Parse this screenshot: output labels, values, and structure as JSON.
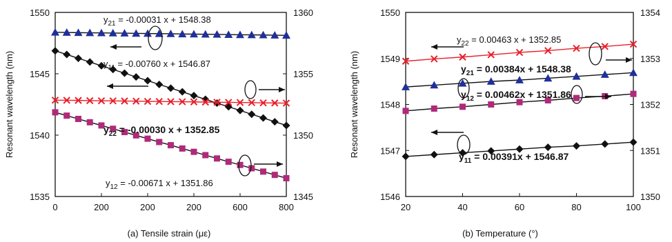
{
  "chart_data": [
    {
      "type": "line",
      "caption": "(a) Tensile strain (με)",
      "ylabel_left": "Resonant wavelength (nm)",
      "xlim": [
        0,
        800
      ],
      "ylim_left": [
        1535,
        1550
      ],
      "ylim_right": [
        1345,
        1360
      ],
      "x_tick_labels": [
        "0",
        "200",
        "200",
        "200",
        "600",
        "800"
      ],
      "y_left_tick_labels": [
        "1535",
        "1540",
        "1545",
        "1550"
      ],
      "y_right_tick_labels": [
        "1345",
        "1350",
        "1355",
        "1360"
      ],
      "grid": false,
      "series": [
        {
          "marker": "triangle",
          "color": "#1f2f9c",
          "axis": "left",
          "x": [
            0,
            40,
            80,
            120,
            160,
            200,
            240,
            280,
            320,
            360,
            400,
            440,
            480,
            520,
            560,
            600,
            640,
            680,
            720,
            760,
            800
          ],
          "y": [
            1548.38,
            1548.37,
            1548.35,
            1548.34,
            1548.33,
            1548.32,
            1548.31,
            1548.29,
            1548.28,
            1548.27,
            1548.26,
            1548.24,
            1548.23,
            1548.22,
            1548.21,
            1548.19,
            1548.18,
            1548.17,
            1548.16,
            1548.14,
            1548.13
          ]
        },
        {
          "marker": "diamond",
          "color": "#111111",
          "axis": "left",
          "x": [
            0,
            40,
            80,
            120,
            160,
            200,
            240,
            280,
            320,
            360,
            400,
            440,
            480,
            520,
            560,
            600,
            640,
            680,
            720,
            760,
            800
          ],
          "y": [
            1546.87,
            1546.57,
            1546.26,
            1545.96,
            1545.65,
            1545.35,
            1545.05,
            1544.74,
            1544.44,
            1544.13,
            1543.83,
            1543.53,
            1543.22,
            1542.92,
            1542.61,
            1542.31,
            1542.01,
            1541.7,
            1541.4,
            1541.09,
            1540.79
          ]
        },
        {
          "marker": "x",
          "color": "#e8202a",
          "axis": "right",
          "x": [
            0,
            40,
            80,
            120,
            160,
            200,
            240,
            280,
            320,
            360,
            400,
            440,
            480,
            520,
            560,
            600,
            640,
            680,
            720,
            760,
            800
          ],
          "y": [
            1352.85,
            1352.84,
            1352.83,
            1352.81,
            1352.8,
            1352.79,
            1352.78,
            1352.77,
            1352.75,
            1352.74,
            1352.73,
            1352.72,
            1352.71,
            1352.69,
            1352.68,
            1352.67,
            1352.66,
            1352.65,
            1352.63,
            1352.62,
            1352.61
          ]
        },
        {
          "marker": "square",
          "color": "#b02a7a",
          "axis": "right",
          "x": [
            0,
            40,
            80,
            120,
            160,
            200,
            240,
            280,
            320,
            360,
            400,
            440,
            480,
            520,
            560,
            600,
            640,
            680,
            720,
            760,
            800
          ],
          "y": [
            1351.86,
            1351.59,
            1351.32,
            1351.05,
            1350.79,
            1350.52,
            1350.25,
            1349.98,
            1349.71,
            1349.44,
            1349.18,
            1348.91,
            1348.64,
            1348.37,
            1348.1,
            1347.83,
            1347.57,
            1347.3,
            1347.03,
            1346.76,
            1346.49
          ]
        }
      ],
      "annotations": [
        {
          "pre": "y",
          "sub": "21",
          "post": " = -0.00031 x + 1548.38"
        },
        {
          "pre": "y",
          "sub": "11",
          "post": " = -0.00760 x + 1546.87"
        },
        {
          "pre": "y",
          "sub": "22",
          "post": " = -0.00030 x + 1352.85"
        },
        {
          "pre": "y",
          "sub": "12",
          "post": " = -0.00671 x + 1351.86"
        }
      ]
    },
    {
      "type": "line",
      "caption": "(b) Temperature (°)",
      "ylabel_left": "Resonant wavelength (nm)",
      "xlim": [
        20,
        100
      ],
      "ylim_left": [
        1546,
        1550
      ],
      "ylim_right": [
        1350,
        1354
      ],
      "x_tick_labels": [
        "20",
        "40",
        "60",
        "80",
        "100"
      ],
      "y_left_tick_labels": [
        "1546",
        "1547",
        "1548",
        "1549",
        "1550"
      ],
      "y_right_tick_labels": [
        "1350",
        "1351",
        "1352",
        "1353",
        "1354"
      ],
      "grid": false,
      "series": [
        {
          "marker": "x",
          "color": "#e8202a",
          "axis": "right",
          "x": [
            20,
            30,
            40,
            50,
            60,
            70,
            80,
            90,
            100
          ],
          "y": [
            1352.94,
            1352.99,
            1353.03,
            1353.08,
            1353.13,
            1353.17,
            1353.22,
            1353.26,
            1353.31
          ]
        },
        {
          "marker": "triangle",
          "color": "#1f2f9c",
          "axis": "left",
          "x": [
            20,
            30,
            40,
            50,
            60,
            70,
            80,
            90,
            100
          ],
          "y": [
            1548.38,
            1548.42,
            1548.46,
            1548.5,
            1548.53,
            1548.57,
            1548.61,
            1548.65,
            1548.69
          ]
        },
        {
          "marker": "square",
          "color": "#b02a7a",
          "axis": "right",
          "x": [
            20,
            30,
            40,
            50,
            60,
            70,
            80,
            90,
            100
          ],
          "y": [
            1351.86,
            1351.91,
            1351.95,
            1352.0,
            1352.05,
            1352.09,
            1352.14,
            1352.18,
            1352.23
          ]
        },
        {
          "marker": "diamond",
          "color": "#111111",
          "axis": "left",
          "x": [
            20,
            30,
            40,
            50,
            60,
            70,
            80,
            90,
            100
          ],
          "y": [
            1546.87,
            1546.91,
            1546.95,
            1546.99,
            1547.03,
            1547.07,
            1547.1,
            1547.14,
            1547.18
          ]
        }
      ],
      "annotations": [
        {
          "pre": "y",
          "sub": "22",
          "post": " = 0.00463 x + 1352.85"
        },
        {
          "pre": "y",
          "sub": "21",
          "post": " = 0.00384x + 1548.38"
        },
        {
          "pre": "y",
          "sub": "12",
          "post": " = 0.00462x + 1351.86"
        },
        {
          "pre": "y",
          "sub": "11",
          "post": " = 0.00391x + 1546.87"
        }
      ]
    }
  ]
}
